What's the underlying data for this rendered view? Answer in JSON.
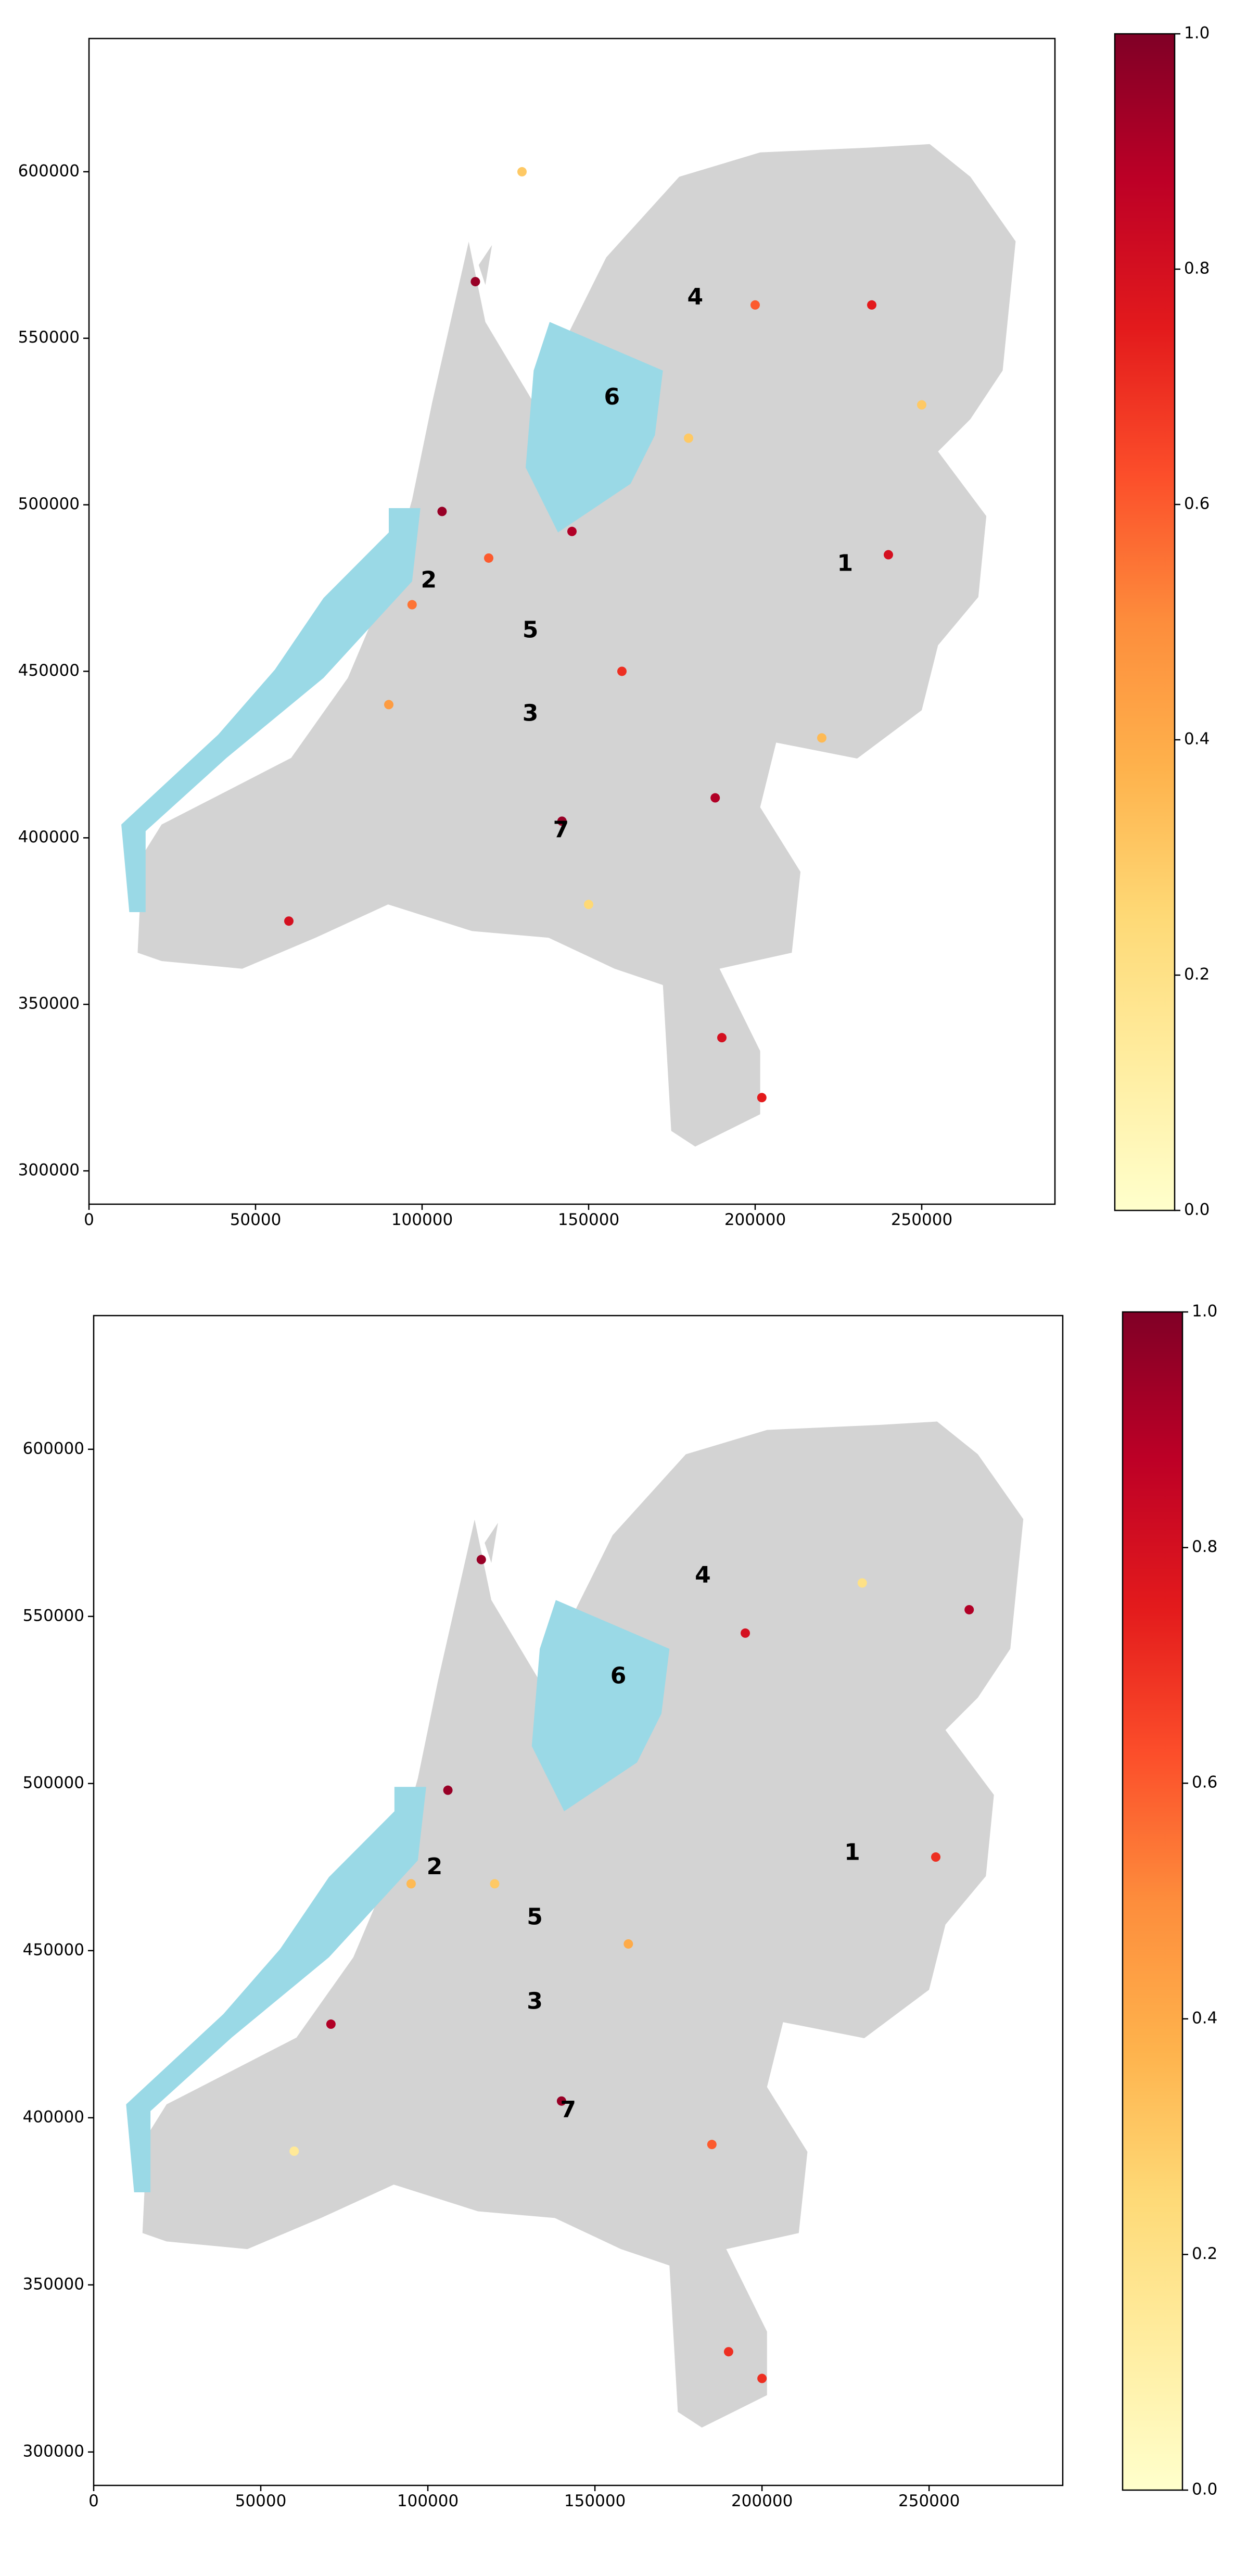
{
  "chart_data": [
    {
      "type": "map",
      "xlim": [
        0,
        290000
      ],
      "ylim": [
        290000,
        640000
      ],
      "xticks": [
        0,
        50000,
        100000,
        150000,
        200000,
        250000
      ],
      "yticks": [
        300000,
        350000,
        400000,
        450000,
        500000,
        550000,
        600000
      ],
      "clim": [
        0,
        1
      ],
      "cticks": [
        {
          "value": 0,
          "label": "0.0"
        },
        0.2,
        0.4,
        0.6,
        0.8,
        {
          "value": 1,
          "label": "1.0"
        }
      ],
      "colormap": [
        "#ffffcc",
        "#ffeda0",
        "#fed976",
        "#feb24c",
        "#fd8d3c",
        "#fc4e2a",
        "#e31a1c",
        "#bd0026",
        "#800026"
      ],
      "x": [
        145000,
        106000,
        116000,
        142000,
        188000,
        240000,
        235000,
        97000,
        190000,
        202000,
        60000,
        200000,
        160000,
        120000,
        180000,
        220000,
        90000,
        150000,
        250000,
        130000
      ],
      "y": [
        492000,
        498000,
        567000,
        405000,
        412000,
        485000,
        560000,
        470000,
        340000,
        322000,
        375000,
        560000,
        450000,
        484000,
        520000,
        430000,
        440000,
        380000,
        530000,
        600000
      ],
      "values": [
        0.9,
        0.95,
        0.95,
        0.95,
        0.9,
        0.8,
        0.75,
        0.55,
        0.8,
        0.75,
        0.8,
        0.6,
        0.7,
        0.6,
        0.3,
        0.35,
        0.45,
        0.25,
        0.3,
        0.3
      ],
      "annotations": [
        {
          "text": "1",
          "x": 227000,
          "y": 482000
        },
        {
          "text": "2",
          "x": 102000,
          "y": 477000
        },
        {
          "text": "3",
          "x": 132500,
          "y": 437000
        },
        {
          "text": "4",
          "x": 182000,
          "y": 562000
        },
        {
          "text": "5",
          "x": 132500,
          "y": 462000
        },
        {
          "text": "6",
          "x": 157000,
          "y": 532000
        },
        {
          "text": "7",
          "x": 141700,
          "y": 402000
        }
      ]
    },
    {
      "type": "map",
      "xlim": [
        0,
        290000
      ],
      "ylim": [
        290000,
        640000
      ],
      "xticks": [
        0,
        50000,
        100000,
        150000,
        200000,
        250000
      ],
      "yticks": [
        300000,
        350000,
        400000,
        450000,
        500000,
        550000,
        600000
      ],
      "clim": [
        0,
        1
      ],
      "cticks": [
        {
          "value": 0,
          "label": "0.0"
        },
        0.2,
        0.4,
        0.6,
        0.8,
        {
          "value": 1,
          "label": "1.0"
        }
      ],
      "colormap": [
        "#ffffcc",
        "#ffeda0",
        "#fed976",
        "#feb24c",
        "#fd8d3c",
        "#fc4e2a",
        "#e31a1c",
        "#bd0026",
        "#800026"
      ],
      "x": [
        106000,
        116000,
        140000,
        252000,
        262000,
        190000,
        195000,
        71000,
        200000,
        185000,
        120000,
        160000,
        95000,
        230000,
        60000
      ],
      "y": [
        498000,
        567000,
        405000,
        478000,
        552000,
        330000,
        545000,
        428000,
        322000,
        392000,
        470000,
        452000,
        470000,
        560000,
        390000
      ],
      "values": [
        0.95,
        0.95,
        0.95,
        0.7,
        0.9,
        0.7,
        0.8,
        0.9,
        0.7,
        0.6,
        0.3,
        0.4,
        0.35,
        0.2,
        0.15
      ],
      "annotations": [
        {
          "text": "1",
          "x": 227000,
          "y": 479000
        },
        {
          "text": "2",
          "x": 102000,
          "y": 474700
        },
        {
          "text": "3",
          "x": 132000,
          "y": 434500
        },
        {
          "text": "4",
          "x": 182300,
          "y": 562000
        },
        {
          "text": "5",
          "x": 132000,
          "y": 459700
        },
        {
          "text": "6",
          "x": 157000,
          "y": 531800
        },
        {
          "text": "7",
          "x": 142000,
          "y": 402000
        }
      ]
    }
  ]
}
